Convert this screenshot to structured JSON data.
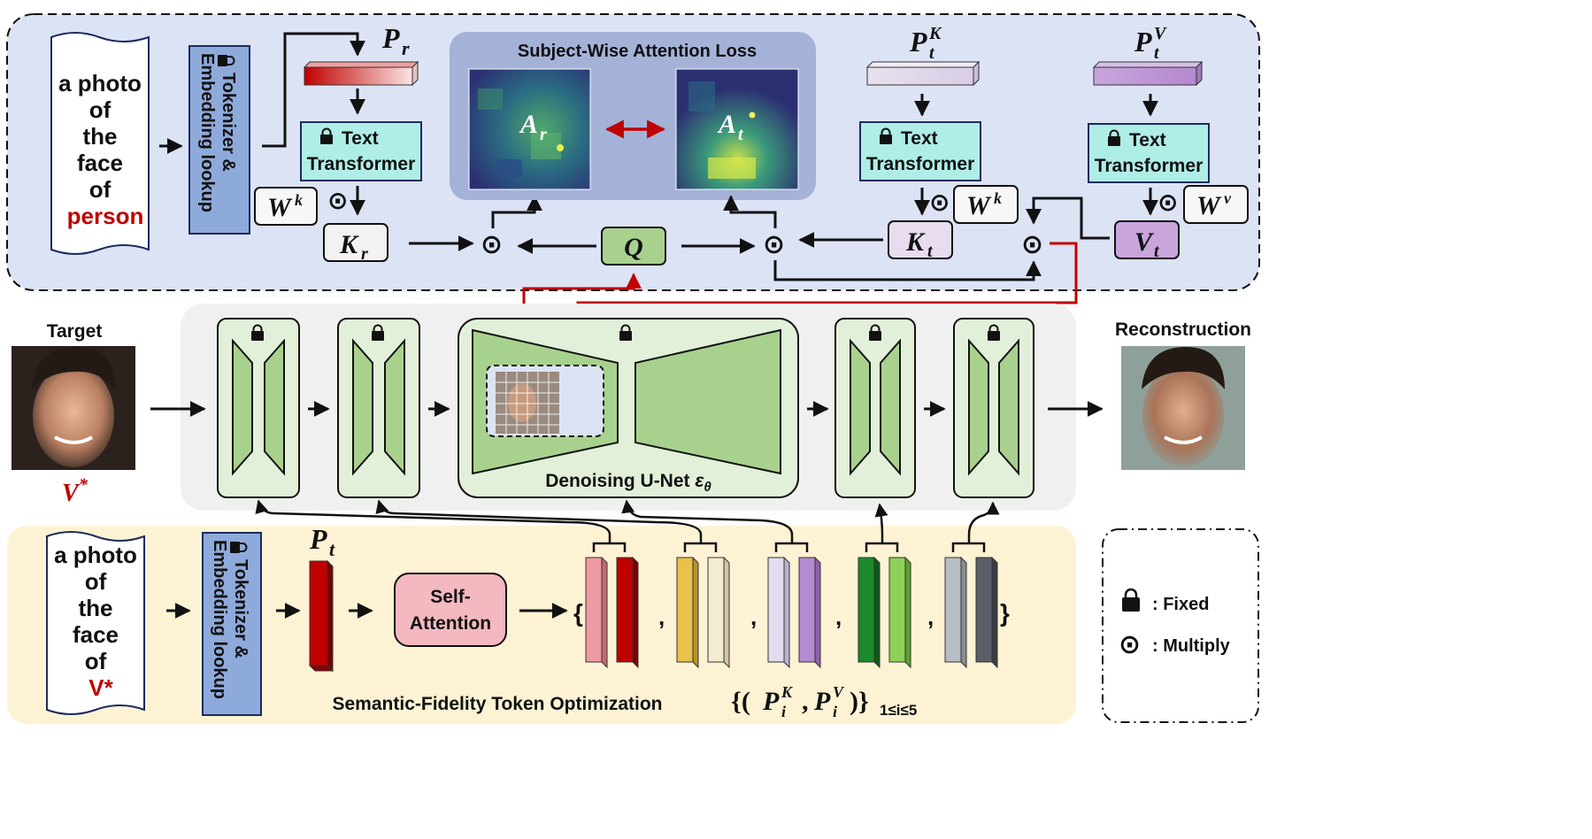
{
  "top": {
    "prompt_lines": [
      "a photo",
      "of",
      "the",
      "face",
      "of"
    ],
    "prompt_word": "person",
    "tokenizer_lines": [
      "Tokenizer &",
      "Embedding lookup"
    ],
    "pr_symbol": "P",
    "pr_sub": "r",
    "loss_title": "Subject-Wise Attention Loss",
    "ar_sym": "A",
    "ar_sub": "r",
    "at_sym": "A",
    "at_sub": "t",
    "text_transformer": [
      "Text",
      "Transformer"
    ],
    "wk": "W",
    "wk_sup": "k",
    "wv": "W",
    "wv_sup": "v",
    "kr": "K",
    "kr_sub": "r",
    "q": "Q",
    "kt": "K",
    "kt_sub": "t",
    "vt": "V",
    "vt_sub": "t",
    "ptk": "P",
    "ptk_sub": "t",
    "ptk_sup": "K",
    "ptv": "P",
    "ptv_sub": "t",
    "ptv_sup": "V",
    "dot": "⊙"
  },
  "middle": {
    "target_label": "Target",
    "target_var": "V",
    "target_star": "*",
    "unet_label": "Denoising U-Net ",
    "unet_eps": "ε",
    "unet_theta": "θ",
    "recon_label": "Reconstruction"
  },
  "bottom": {
    "prompt_lines": [
      "a photo",
      "of",
      "the",
      "face",
      "of"
    ],
    "prompt_word": "V*",
    "tokenizer_lines": [
      "Tokenizer &",
      "Embedding lookup"
    ],
    "pt_symbol": "P",
    "pt_sub": "t",
    "self_attention": [
      "Self-",
      "Attention"
    ],
    "brace_open": "{",
    "brace_close": "}",
    "comma": ",",
    "title": "Semantic-Fidelity Token Optimization",
    "set_open": "{(",
    "set_p1": "P",
    "set_p1_sub": "i",
    "set_p1_sup": "K",
    "set_comma": ",",
    "set_p2": "P",
    "set_p2_sub": "i",
    "set_p2_sup": "V",
    "set_close": ")}",
    "set_range": "1≤i≤5"
  },
  "legend": {
    "fixed": ": Fixed",
    "multiply": ": Multiply"
  },
  "colors": {
    "top_panel": "#dce3f5",
    "bottom_panel": "#fdf3d4",
    "middle_panel": "#f0f0f0",
    "tokenizer": "#8eaadb",
    "transformer": "#aeeee6",
    "block_green": "#a9d18e",
    "block_bg": "#e2f0d9",
    "red_accent": "#c00000",
    "self_attention": "#f4b8c1"
  }
}
